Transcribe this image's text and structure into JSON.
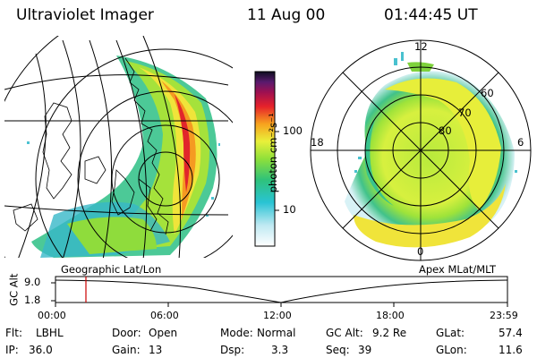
{
  "header": {
    "title": "Ultraviolet Imager",
    "date": "11 Aug 00",
    "time": "01:44:45 UT"
  },
  "left_panel": {
    "caption": "Geographic Lat/Lon"
  },
  "right_panel": {
    "caption": "Apex MLat/MLT",
    "mlt_labels": [
      "12",
      "18",
      "6",
      "0"
    ],
    "lat_labels": [
      "60",
      "70",
      "80"
    ]
  },
  "colorbar": {
    "label": "photon cm⁻²s⁻¹",
    "ticks": [
      "100",
      "10"
    ],
    "scale": "log"
  },
  "timeline": {
    "ylabel": "GC Alt",
    "yticks": [
      "9.0",
      "1.8"
    ],
    "xticks": [
      "00:00",
      "06:00",
      "12:00",
      "18:00",
      "23:59"
    ],
    "marker_time": "01:44"
  },
  "footer": {
    "flt_label": "Flt:",
    "flt_value": "LBHL",
    "ip_label": "IP:",
    "ip_value": "36.0",
    "door_label": "Door:",
    "door_value": "Open",
    "gain_label": "Gain:",
    "gain_value": "13",
    "mode_label": "Mode:",
    "mode_value": "Normal",
    "dsp_label": "Dsp:",
    "dsp_value": "3.3",
    "gcalt_label": "GC Alt:",
    "gcalt_value": "9.2 Re",
    "seq_label": "Seq:",
    "seq_value": "39",
    "glat_label": "GLat:",
    "glat_value": "57.4",
    "glon_label": "GLon:",
    "glon_value": "11.6"
  },
  "colors": {
    "marker": "#cc0000",
    "line": "#000000"
  }
}
